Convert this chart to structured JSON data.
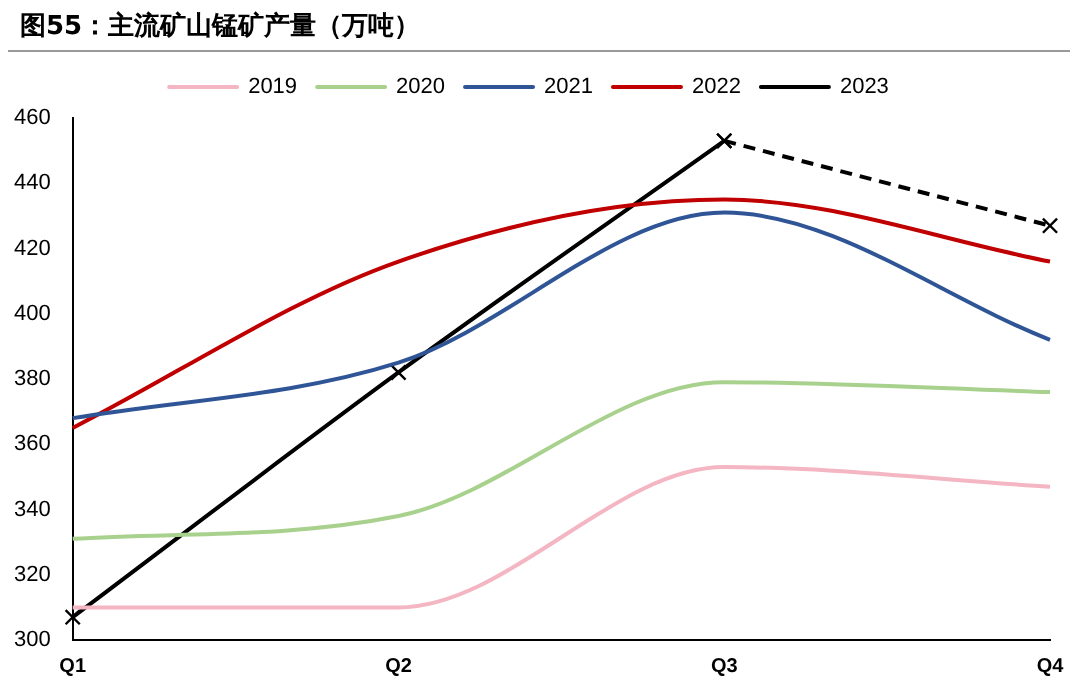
{
  "chart_data": {
    "type": "line",
    "title": "图55：主流矿山锰矿产量（万吨）",
    "categories": [
      "Q1",
      "Q2",
      "Q3",
      "Q4"
    ],
    "ylim": [
      300,
      460
    ],
    "yticks": [
      300,
      320,
      340,
      360,
      380,
      400,
      420,
      440,
      460
    ],
    "grid": false,
    "legend": "top",
    "marker": "none",
    "series": [
      {
        "name": "2019",
        "color": "#f4b6c2",
        "values": [
          310,
          310,
          353,
          347
        ]
      },
      {
        "name": "2020",
        "color": "#a9d18e",
        "values": [
          331,
          338,
          379,
          376
        ]
      },
      {
        "name": "2021",
        "color": "#2f5597",
        "values": [
          368,
          385,
          431,
          392
        ]
      },
      {
        "name": "2022",
        "color": "#c00000",
        "values": [
          365,
          416,
          435,
          416
        ]
      },
      {
        "name": "2023",
        "color": "#000000",
        "marker": "cross",
        "values": [
          307,
          382,
          453,
          null
        ]
      },
      {
        "color": "#000000",
        "marker": "cross",
        "line_style": "dashed",
        "values": [
          null,
          null,
          453,
          427
        ]
      }
    ]
  }
}
